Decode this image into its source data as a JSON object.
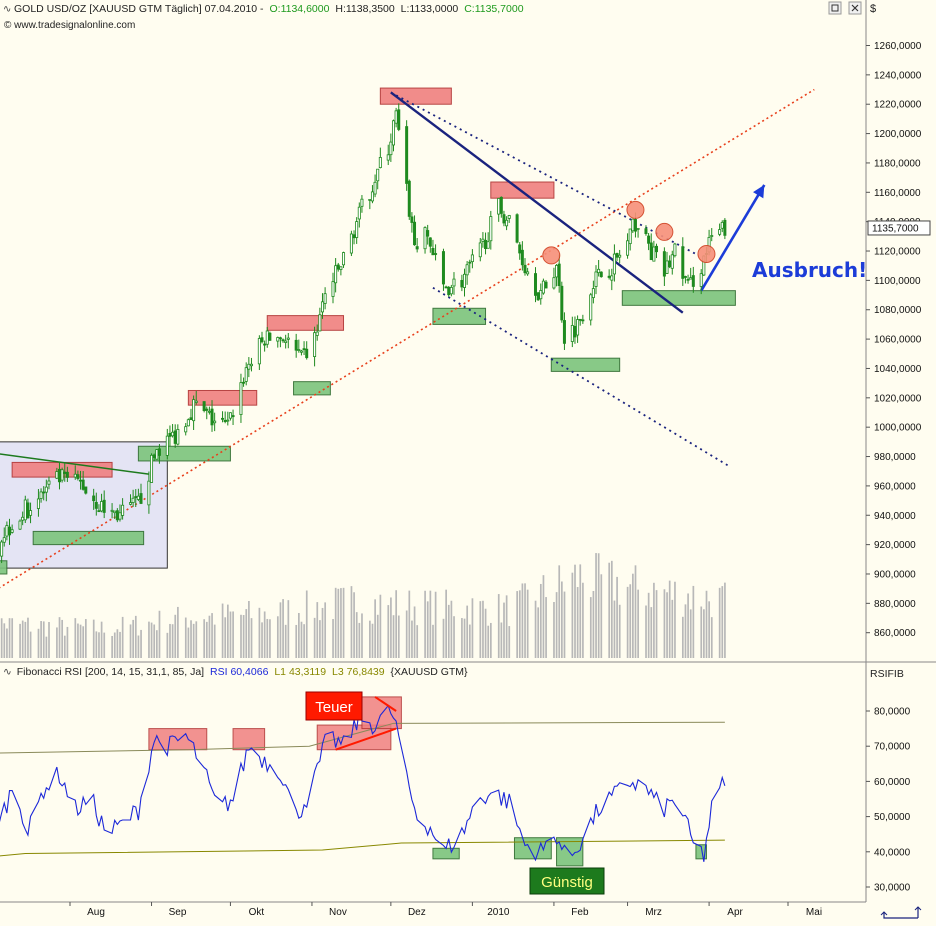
{
  "header": {
    "instrument": "GOLD USD/OZ [XAUUSD GTM Täglich] 07.04.2010 -",
    "open": "O:1134,6000",
    "high": "H:1138,3500",
    "low": "L:1133,0000",
    "close": "C:1135,7000",
    "copyright": "© www.tradesignalonline.com",
    "currency": "$"
  },
  "rsi_header": {
    "label": "Fibonacci RSI [200, 14, 15, 31,1, 85, Ja]",
    "rsi": "RSI 60,4066",
    "l1": "L1 43,3119",
    "l3": "L3 76,8439",
    "symbol": "{XAUUSD GTM}",
    "axis_title": "RSIFIB"
  },
  "annotations": {
    "breakout": "Ausbruch!",
    "expensive": "Teuer",
    "favorable": "Günstig"
  },
  "colors": {
    "background": "#fffdf0",
    "candle": "#1f8a1f",
    "resistance_box": "#f08080",
    "support_box": "#7cc47c",
    "trendline": "#1a237e",
    "fib_line": "#e8401c",
    "rsi_line": "#1c28d8",
    "volume": "#b8b8b8",
    "breakout_arrow": "#1c3cd8",
    "olive": "#888800",
    "teuer_bg": "#ff1a00",
    "guenstig_bg": "#1d7a1d"
  },
  "chart_data": [
    {
      "type": "candlestick",
      "title": "GOLD USD/OZ [XAUUSD GTM Täglich]",
      "ylim": [
        845,
        1275
      ],
      "ytick_values": [
        860,
        880,
        900,
        920,
        940,
        960,
        980,
        1000,
        1020,
        1040,
        1060,
        1080,
        1100,
        1120,
        1140,
        1160,
        1180,
        1200,
        1220,
        1240,
        1260
      ],
      "ytick_labels": [
        "860,0000",
        "880,0000",
        "900,0000",
        "920,0000",
        "940,0000",
        "960,0000",
        "980,0000",
        "1000,0000",
        "1020,0000",
        "1040,0000",
        "1060,0000",
        "1080,0000",
        "1100,0000",
        "1120,0000",
        "1140,0000",
        "1160,0000",
        "1180,0000",
        "1200,0000",
        "1220,0000",
        "1240,0000",
        "1260,0000"
      ],
      "last_value_label": "1135,7000",
      "last_value": 1135.7,
      "anchors": [
        {
          "date": "2009-07-01",
          "close": 915
        },
        {
          "date": "2009-07-10",
          "close": 935
        },
        {
          "date": "2009-07-20",
          "close": 952
        },
        {
          "date": "2009-07-28",
          "close": 965
        },
        {
          "date": "2009-08-05",
          "close": 962
        },
        {
          "date": "2009-08-13",
          "close": 945
        },
        {
          "date": "2009-08-20",
          "close": 940
        },
        {
          "date": "2009-08-27",
          "close": 948
        },
        {
          "date": "2009-09-03",
          "close": 985
        },
        {
          "date": "2009-09-10",
          "close": 995
        },
        {
          "date": "2009-09-17",
          "close": 1015
        },
        {
          "date": "2009-09-24",
          "close": 1005
        },
        {
          "date": "2009-09-30",
          "close": 1000
        },
        {
          "date": "2009-10-07",
          "close": 1040
        },
        {
          "date": "2009-10-14",
          "close": 1060
        },
        {
          "date": "2009-10-21",
          "close": 1062
        },
        {
          "date": "2009-10-28",
          "close": 1045
        },
        {
          "date": "2009-11-02",
          "close": 1060
        },
        {
          "date": "2009-11-06",
          "close": 1090
        },
        {
          "date": "2009-11-12",
          "close": 1110
        },
        {
          "date": "2009-11-18",
          "close": 1140
        },
        {
          "date": "2009-11-25",
          "close": 1170
        },
        {
          "date": "2009-11-30",
          "close": 1190
        },
        {
          "date": "2009-12-03",
          "close": 1212
        },
        {
          "date": "2009-12-07",
          "close": 1160
        },
        {
          "date": "2009-12-10",
          "close": 1125
        },
        {
          "date": "2009-12-15",
          "close": 1130
        },
        {
          "date": "2009-12-21",
          "close": 1095
        },
        {
          "date": "2009-12-28",
          "close": 1100
        },
        {
          "date": "2010-01-04",
          "close": 1120
        },
        {
          "date": "2010-01-11",
          "close": 1150
        },
        {
          "date": "2010-01-15",
          "close": 1140
        },
        {
          "date": "2010-01-21",
          "close": 1110
        },
        {
          "date": "2010-01-27",
          "close": 1090
        },
        {
          "date": "2010-02-02",
          "close": 1110
        },
        {
          "date": "2010-02-05",
          "close": 1062
        },
        {
          "date": "2010-02-10",
          "close": 1070
        },
        {
          "date": "2010-02-16",
          "close": 1100
        },
        {
          "date": "2010-02-23",
          "close": 1110
        },
        {
          "date": "2010-03-01",
          "close": 1125
        },
        {
          "date": "2010-03-04",
          "close": 1140
        },
        {
          "date": "2010-03-10",
          "close": 1120
        },
        {
          "date": "2010-03-15",
          "close": 1105
        },
        {
          "date": "2010-03-19",
          "close": 1120
        },
        {
          "date": "2010-03-24",
          "close": 1095
        },
        {
          "date": "2010-03-29",
          "close": 1110
        },
        {
          "date": "2010-04-02",
          "close": 1128
        },
        {
          "date": "2010-04-07",
          "close": 1135.7
        }
      ],
      "volume_anchors": [
        {
          "date": "2009-07-01",
          "level": 0.3
        },
        {
          "date": "2009-08-15",
          "level": 0.25
        },
        {
          "date": "2009-09-15",
          "level": 0.35
        },
        {
          "date": "2009-10-15",
          "level": 0.38
        },
        {
          "date": "2009-11-15",
          "level": 0.48
        },
        {
          "date": "2009-12-10",
          "level": 0.45
        },
        {
          "date": "2010-01-15",
          "level": 0.42
        },
        {
          "date": "2010-02-10",
          "level": 0.7
        },
        {
          "date": "2010-03-05",
          "level": 0.6
        },
        {
          "date": "2010-04-07",
          "level": 0.5
        }
      ],
      "resistance_boxes": [
        {
          "d0": "2009-07-10",
          "d1": "2009-08-17",
          "y0": 966,
          "y1": 976
        },
        {
          "d0": "2009-09-15",
          "d1": "2009-10-11",
          "y0": 1015,
          "y1": 1025
        },
        {
          "d0": "2009-10-15",
          "d1": "2009-11-13",
          "y0": 1066,
          "y1": 1076
        },
        {
          "d0": "2009-11-27",
          "d1": "2009-12-24",
          "y0": 1220,
          "y1": 1231
        },
        {
          "d0": "2010-01-08",
          "d1": "2010-02-01",
          "y0": 1156,
          "y1": 1167
        }
      ],
      "support_boxes": [
        {
          "d0": "2009-06-30",
          "d1": "2009-07-08",
          "y0": 900,
          "y1": 909
        },
        {
          "d0": "2009-07-18",
          "d1": "2009-08-29",
          "y0": 920,
          "y1": 929
        },
        {
          "d0": "2009-08-27",
          "d1": "2009-10-01",
          "y0": 977,
          "y1": 987
        },
        {
          "d0": "2009-10-25",
          "d1": "2009-11-08",
          "y0": 1022,
          "y1": 1031
        },
        {
          "d0": "2009-12-17",
          "d1": "2010-01-06",
          "y0": 1070,
          "y1": 1081
        },
        {
          "d0": "2010-01-31",
          "d1": "2010-02-26",
          "y0": 1038,
          "y1": 1047
        },
        {
          "d0": "2010-02-27",
          "d1": "2010-04-11",
          "y0": 1083,
          "y1": 1093
        }
      ],
      "consolidation_zone": {
        "d0": "2009-06-30",
        "d1": "2009-09-07",
        "y0": 904,
        "y1": 990
      },
      "green_line": {
        "d0": "2009-06-30",
        "d1": "2009-08-31",
        "v0": 983,
        "v1": 968
      },
      "trendline_solid": {
        "d0": "2009-12-01",
        "d1": "2010-03-22",
        "v0": 1228,
        "v1": 1078
      },
      "trendline_upper_dotted": {
        "d0": "2009-12-01",
        "d1": "2010-03-28",
        "v0": 1228,
        "v1": 1117
      },
      "trendline_lower_dotted": {
        "d0": "2009-12-17",
        "d1": "2010-04-09",
        "v0": 1095,
        "v1": 973
      },
      "fib_line": {
        "d0": "2009-06-30",
        "d1": "2010-05-11",
        "v0": 885,
        "v1": 1230
      },
      "circles": [
        {
          "date": "2010-01-31",
          "value": 1117
        },
        {
          "date": "2010-03-04",
          "value": 1148
        },
        {
          "date": "2010-03-15",
          "value": 1133
        },
        {
          "date": "2010-03-31",
          "value": 1118
        }
      ],
      "breakout_arrow": {
        "d0": "2010-03-29",
        "d1": "2010-04-22",
        "v0": 1093,
        "v1": 1165
      }
    },
    {
      "type": "line",
      "title": "Fibonacci RSI [200, 14, 15, 31,1, 85, Ja]",
      "ylim": [
        25,
        89
      ],
      "ytick_values": [
        30,
        40,
        50,
        60,
        70,
        80
      ],
      "ytick_labels": [
        "30,0000",
        "40,0000",
        "50,0000",
        "60,0000",
        "70,0000",
        "80,0000"
      ],
      "x_categories": [
        "Aug",
        "Sep",
        "Okt",
        "Nov",
        "Dez",
        "2010",
        "Feb",
        "Mrz",
        "Apr",
        "Mai"
      ],
      "x_dates": [
        "2009-08-01",
        "2009-09-01",
        "2009-10-01",
        "2009-11-01",
        "2009-12-01",
        "2010-01-01",
        "2010-02-01",
        "2010-03-01",
        "2010-04-01",
        "2010-05-01"
      ],
      "series": [
        {
          "values": [
            {
              "date": "2009-06-30",
              "value": 38
            },
            {
              "date": "2009-07-05",
              "value": 48
            },
            {
              "date": "2009-07-11",
              "value": 60
            },
            {
              "date": "2009-07-16",
              "value": 45
            },
            {
              "date": "2009-07-22",
              "value": 58
            },
            {
              "date": "2009-07-28",
              "value": 62
            },
            {
              "date": "2009-08-03",
              "value": 52
            },
            {
              "date": "2009-08-09",
              "value": 55
            },
            {
              "date": "2009-08-15",
              "value": 45
            },
            {
              "date": "2009-08-21",
              "value": 48
            },
            {
              "date": "2009-08-27",
              "value": 52
            },
            {
              "date": "2009-09-02",
              "value": 72
            },
            {
              "date": "2009-09-08",
              "value": 70
            },
            {
              "date": "2009-09-14",
              "value": 73
            },
            {
              "date": "2009-09-20",
              "value": 65
            },
            {
              "date": "2009-09-26",
              "value": 52
            },
            {
              "date": "2009-10-02",
              "value": 55
            },
            {
              "date": "2009-10-08",
              "value": 70
            },
            {
              "date": "2009-10-14",
              "value": 66
            },
            {
              "date": "2009-10-20",
              "value": 63
            },
            {
              "date": "2009-10-26",
              "value": 50
            },
            {
              "date": "2009-11-01",
              "value": 58
            },
            {
              "date": "2009-11-07",
              "value": 73
            },
            {
              "date": "2009-11-13",
              "value": 70
            },
            {
              "date": "2009-11-19",
              "value": 78
            },
            {
              "date": "2009-11-25",
              "value": 76
            },
            {
              "date": "2009-12-01",
              "value": 80
            },
            {
              "date": "2009-12-04",
              "value": 73
            },
            {
              "date": "2009-12-07",
              "value": 60
            },
            {
              "date": "2009-12-11",
              "value": 50
            },
            {
              "date": "2009-12-16",
              "value": 47
            },
            {
              "date": "2009-12-21",
              "value": 40
            },
            {
              "date": "2009-12-28",
              "value": 45
            },
            {
              "date": "2010-01-03",
              "value": 55
            },
            {
              "date": "2010-01-09",
              "value": 57
            },
            {
              "date": "2010-01-15",
              "value": 54
            },
            {
              "date": "2010-01-21",
              "value": 42
            },
            {
              "date": "2010-01-27",
              "value": 40
            },
            {
              "date": "2010-02-02",
              "value": 45
            },
            {
              "date": "2010-02-06",
              "value": 37
            },
            {
              "date": "2010-02-12",
              "value": 44
            },
            {
              "date": "2010-02-18",
              "value": 52
            },
            {
              "date": "2010-02-24",
              "value": 56
            },
            {
              "date": "2010-03-02",
              "value": 60
            },
            {
              "date": "2010-03-08",
              "value": 58
            },
            {
              "date": "2010-03-14",
              "value": 52
            },
            {
              "date": "2010-03-20",
              "value": 55
            },
            {
              "date": "2010-03-26",
              "value": 42
            },
            {
              "date": "2010-03-30",
              "value": 39
            },
            {
              "date": "2010-04-02",
              "value": 52
            },
            {
              "date": "2010-04-07",
              "value": 60.4
            }
          ]
        }
      ],
      "l1_line": [
        {
          "date": "2009-06-30",
          "value": 38.5
        },
        {
          "date": "2009-07-15",
          "value": 39.5
        },
        {
          "date": "2009-11-05",
          "value": 40.5
        },
        {
          "date": "2009-12-05",
          "value": 42.5
        },
        {
          "date": "2010-04-07",
          "value": 43.3
        }
      ],
      "l3_line": [
        {
          "date": "2009-06-30",
          "value": 68
        },
        {
          "date": "2009-09-15",
          "value": 69
        },
        {
          "date": "2009-10-31",
          "value": 70
        },
        {
          "date": "2009-12-02",
          "value": 76.5
        },
        {
          "date": "2010-04-07",
          "value": 76.8
        }
      ],
      "overbought_boxes": [
        {
          "d0": "2009-08-31",
          "d1": "2009-09-22",
          "y0": 69,
          "y1": 75
        },
        {
          "d0": "2009-10-02",
          "d1": "2009-10-14",
          "y0": 69,
          "y1": 75
        },
        {
          "d0": "2009-11-03",
          "d1": "2009-12-01",
          "y0": 69,
          "y1": 76
        },
        {
          "d0": "2009-11-20",
          "d1": "2009-12-05",
          "y0": 75,
          "y1": 84
        }
      ],
      "oversold_boxes": [
        {
          "d0": "2009-12-17",
          "d1": "2009-12-27",
          "y0": 38,
          "y1": 41
        },
        {
          "d0": "2010-01-17",
          "d1": "2010-01-31",
          "y0": 38,
          "y1": 44
        },
        {
          "d0": "2010-02-02",
          "d1": "2010-02-12",
          "y0": 36,
          "y1": 44
        },
        {
          "d0": "2010-03-27",
          "d1": "2010-03-31",
          "y0": 38,
          "y1": 42
        }
      ],
      "red_wedge_lines": [
        {
          "d0": "2009-11-10",
          "d1": "2009-12-03",
          "v0": 69,
          "v1": 75
        },
        {
          "d0": "2009-11-25",
          "d1": "2009-12-03",
          "v0": 84,
          "v1": 80
        }
      ]
    }
  ]
}
